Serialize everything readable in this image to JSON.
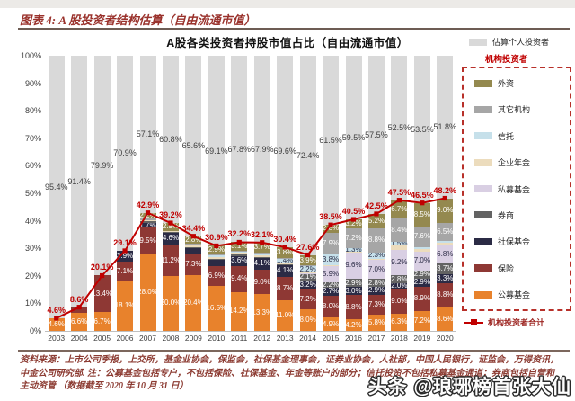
{
  "header": {
    "caption": "图表 4: A 股投资者结构估算（自由流通市值）"
  },
  "chart": {
    "title": "A股各类投资者持股市值占比（自由流通市值）"
  },
  "legend": {
    "individual_label": "估算个人投资者",
    "group_title": "机构投资者",
    "line_total_label": "机构投资者合计"
  },
  "footnote": {
    "text": "资料来源：上市公司季报，上交所，基金业协会，保监会，社保基金理事会，证券业协会，人社部，中国人民银行，证监会，万得资讯，中金公司研究部. 注：公募基金包括专户，不包括保险、社保基金、年金等账户的部分；信托投资不包括私募基金通道；券商包括自营和主动资管 （数据截至 2020 年 10 月 31 日）"
  },
  "watermark": {
    "text": "头条 @琅琊榜首张大仙"
  },
  "chart_data": {
    "type": "bar",
    "stacked": true,
    "title": "A股各类投资者持股市值占比（自由流通市值）",
    "ylim": [
      0,
      100
    ],
    "y_ticks": [
      "0%",
      "10%",
      "20%",
      "30%",
      "40%",
      "50%",
      "60%",
      "70%",
      "80%",
      "90%",
      "100%"
    ],
    "grid": false,
    "legend_position": "right",
    "categories": [
      "2003",
      "2004",
      "2005",
      "2006",
      "2007",
      "2008",
      "2009",
      "2010",
      "2011",
      "2012",
      "2013",
      "2014",
      "2015",
      "2016",
      "2017",
      "2018",
      "2019",
      "2020"
    ],
    "series": [
      {
        "name": "公募基金",
        "role": "institutional",
        "color": "#e8822c",
        "label_color": "#ffffff",
        "values": [
          4.6,
          6.6,
          6.7,
          18.1,
          28.0,
          20.0,
          20.4,
          16.5,
          14.2,
          13.3,
          11.0,
          8.0,
          4.9,
          4.2,
          5.8,
          6.3,
          7.2,
          8.6
        ],
        "labels": [
          "4.6%",
          "6.6%",
          "6.7%",
          "18.1%",
          "28.0%",
          "20.0%",
          "20.4%",
          "16.5%",
          "14.2%",
          "13.3%",
          "11.0%",
          "8.0%",
          "4.9%",
          "4.2%",
          "5.8%",
          "6.3%",
          "7.2%",
          "8.6%"
        ]
      },
      {
        "name": "保险",
        "role": "institutional",
        "color": "#8e3834",
        "label_color": "#ffffff",
        "values": [
          0,
          2.0,
          13.4,
          7.1,
          9.5,
          11.2,
          7.3,
          6.9,
          9.4,
          9.0,
          8.7,
          7.2,
          8.0,
          8.8,
          7.3,
          9.0,
          8.9,
          8.8
        ],
        "labels": [
          "",
          "",
          "13.4%",
          "7.1%",
          "9.5%",
          "11.2%",
          "7.3%",
          "6.9%",
          "9.4%",
          "9.0%",
          "8.7%",
          "7.2%",
          "8.0%",
          "8.8%",
          "7.3%",
          "9.0%",
          "8.9%",
          "8.8%"
        ]
      },
      {
        "name": "社保基金",
        "role": "institutional",
        "color": "#2b2b45",
        "label_color": "#ffffff",
        "values": [
          0,
          0,
          0,
          3.9,
          1.7,
          4.6,
          2.3,
          2.3,
          3.6,
          4.1,
          4.1,
          3.2,
          2.7,
          3.0,
          2.9,
          2.0,
          2.9,
          3.3
        ],
        "labels": [
          "",
          "",
          "",
          "3.9%",
          "1.7%",
          "4.6%",
          "",
          "",
          "3.6%",
          "4.1%",
          "4.1%",
          "3.2%",
          "2.7%",
          "3.0%",
          "2.9%",
          "2.0%",
          "2.9%",
          "3.3%"
        ]
      },
      {
        "name": "券商",
        "role": "institutional",
        "color": "#636363",
        "label_color": "#ffffff",
        "values": [
          0,
          0,
          0,
          0,
          0.7,
          0.3,
          0.5,
          0.6,
          0.6,
          0.5,
          0.5,
          2.1,
          2.2,
          2.9,
          2.8,
          2.8,
          2.9,
          3.7
        ],
        "labels": [
          "",
          "",
          "",
          "",
          "",
          "",
          "",
          "",
          "",
          "",
          "",
          "2.1%",
          "2.2%",
          "2.9%",
          "2.8%",
          "2.8%",
          "2.9%",
          "3.7%"
        ]
      },
      {
        "name": "私募基金",
        "role": "institutional",
        "color": "#d9cfe3",
        "label_color": "#2a2a44",
        "values": [
          0,
          0,
          0,
          0,
          0,
          0,
          0,
          0,
          0,
          0,
          0,
          0.3,
          5.9,
          9.6,
          7.0,
          9.2,
          7.0,
          6.8
        ],
        "labels": [
          "",
          "",
          "",
          "",
          "",
          "",
          "",
          "",
          "",
          "",
          "",
          "",
          "5.9%",
          "9.6%",
          "7.0%",
          "9.2%",
          "7.0%",
          "6.8%"
        ]
      },
      {
        "name": "企业年金",
        "role": "institutional",
        "color": "#ecdcbd",
        "label_color": "#2a2a44",
        "values": [
          0,
          0,
          0,
          0,
          0.3,
          0.2,
          0.4,
          0.5,
          0.5,
          0.6,
          0.5,
          0.4,
          0.3,
          0.3,
          0.4,
          1.6,
          0.7,
          0.8
        ],
        "labels": [
          "",
          "",
          "",
          "",
          "",
          "",
          "",
          "",
          "",
          "",
          "",
          "",
          "",
          "",
          "",
          "",
          "",
          ""
        ]
      },
      {
        "name": "信托",
        "role": "institutional",
        "color": "#c6e0ea",
        "label_color": "#2a2a44",
        "values": [
          0,
          0,
          0,
          0,
          0,
          0,
          0.4,
          0.5,
          0.4,
          0.6,
          1.4,
          2.2,
          3.8,
          1.3,
          2.3,
          1.5,
          0.8,
          0.7
        ],
        "labels": [
          "",
          "",
          "",
          "",
          "",
          "",
          "",
          "",
          "",
          "",
          "1.4%",
          "2.2%",
          "3.8%",
          "1.3%",
          "2.3%",
          "1.5%",
          "",
          ""
        ]
      },
      {
        "name": "其它机构",
        "role": "institutional",
        "color": "#a6a6a6",
        "label_color": "#ffffff",
        "values": [
          0,
          0,
          0,
          0,
          0.5,
          0,
          0.3,
          0.7,
          0.4,
          0.3,
          0.4,
          0.3,
          7.9,
          7.2,
          8.8,
          8.4,
          7.6,
          6.5
        ],
        "labels": [
          "",
          "",
          "",
          "",
          "",
          "",
          "",
          "",
          "",
          "",
          "",
          "",
          "7.9%",
          "7.2%",
          "8.8%",
          "8.4%",
          "7.6%",
          "6.5%"
        ]
      },
      {
        "name": "外资",
        "role": "institutional",
        "color": "#94894f",
        "label_color": "#ffffff",
        "values": [
          0,
          0,
          0,
          0,
          2.2,
          2.9,
          2.8,
          2.9,
          3.1,
          3.7,
          3.8,
          3.9,
          2.8,
          3.2,
          5.2,
          6.7,
          8.5,
          9.0
        ],
        "labels": [
          "",
          "",
          "",
          "",
          "2.2%",
          "2.9%",
          "2.8%",
          "2.9%",
          "3.1%",
          "3.7%",
          "3.8%",
          "3.9%",
          "2.8%",
          "3.2%",
          "5.2%",
          "6.7%",
          "8.5%",
          "9.0%"
        ]
      },
      {
        "name": "估算个人投资者",
        "role": "individual",
        "color": "#d9d9d9",
        "label_color": "#3f3f3f",
        "values": [
          95.4,
          91.4,
          79.9,
          70.9,
          57.1,
          60.8,
          65.6,
          69.1,
          67.8,
          67.9,
          69.6,
          72.4,
          61.5,
          59.5,
          57.5,
          52.5,
          53.5,
          51.8
        ],
        "labels": [
          "95.4%",
          "91.4%",
          "79.9%",
          "70.9%",
          "57.1%",
          "60.8%",
          "65.6%",
          "69.1%",
          "67.8%",
          "67.9%",
          "69.6%",
          "72.4%",
          "61.5%",
          "59.5%",
          "57.5%",
          "52.5%",
          "53.5%",
          "51.8%"
        ]
      }
    ],
    "line": {
      "name": "机构投资者合计",
      "color": "#c00000",
      "values": [
        4.6,
        8.6,
        20.1,
        29.1,
        42.9,
        39.2,
        34.4,
        30.9,
        32.2,
        32.1,
        30.4,
        27.6,
        38.5,
        40.5,
        42.5,
        47.5,
        46.5,
        48.2
      ],
      "labels": [
        "4.6%",
        "8.6%",
        "20.1%",
        "29.1%",
        "42.9%",
        "39.2%",
        "34.4%",
        "30.9%",
        "32.2%",
        "32.1%",
        "30.4%",
        "27.6%",
        "38.5%",
        "40.5%",
        "42.5%",
        "47.5%",
        "46.5%",
        "48.2%"
      ]
    }
  }
}
